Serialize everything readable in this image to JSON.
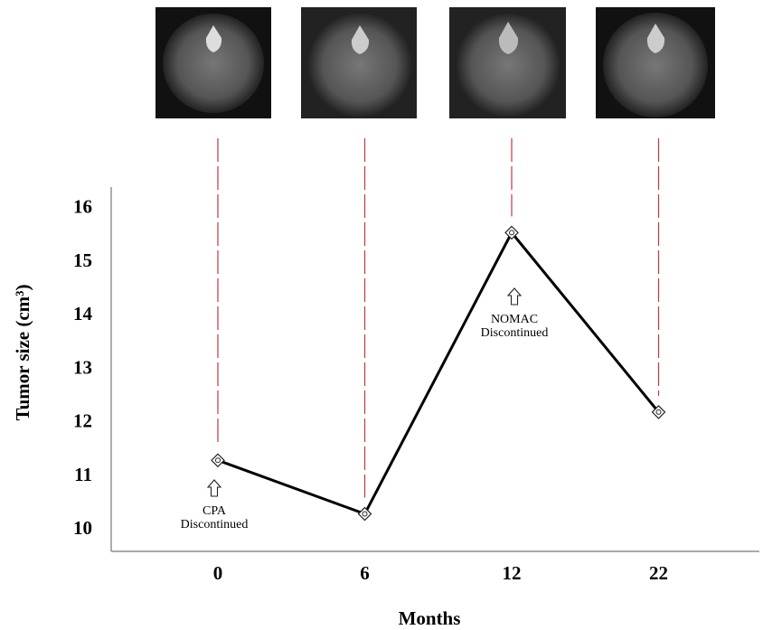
{
  "chart_data": {
    "type": "line",
    "x_label": "Months",
    "y_label": "Tumor size (cm³)",
    "categories": [
      "0",
      "6",
      "12",
      "22"
    ],
    "values": [
      11.3,
      10.3,
      15.55,
      12.2
    ],
    "color": "#000000",
    "ylim": [
      9.6,
      16.4
    ],
    "yticks": [
      10,
      11,
      12,
      13,
      14,
      15,
      16
    ],
    "annotations": [
      [
        "CPA",
        "Discontinued"
      ],
      [
        "NOMAC",
        "Discontinued"
      ]
    ]
  }
}
